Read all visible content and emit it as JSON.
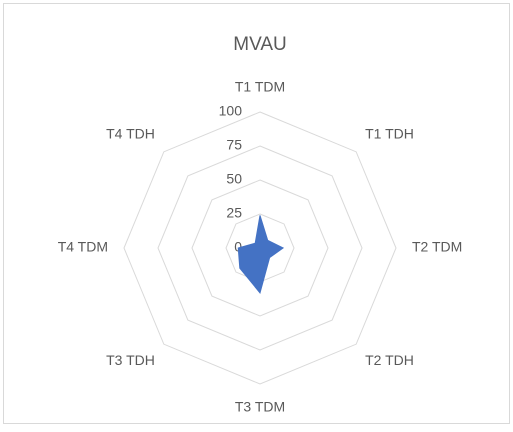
{
  "chart_data": {
    "type": "radar",
    "title": "MVAU",
    "categories": [
      "T1 TDM",
      "T1 TDH",
      "T2 TDM",
      "T2 TDH",
      "T3 TDM",
      "T3 TDH",
      "T4 TDM",
      "T4 TDH"
    ],
    "values": [
      24,
      8,
      17,
      10,
      33,
      21,
      16,
      5
    ],
    "color": "#4472c4",
    "ylim": [
      0,
      100
    ],
    "yticks": [
      0,
      25,
      50,
      75,
      100
    ],
    "grid": true
  }
}
